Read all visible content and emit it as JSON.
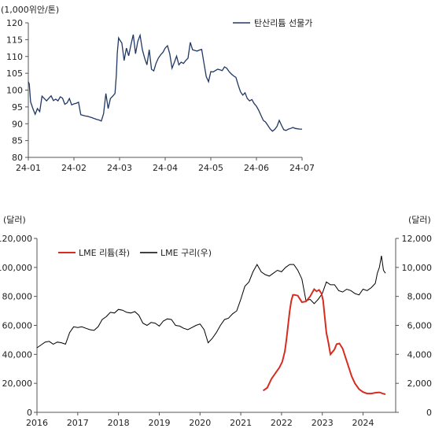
{
  "chart_data": [
    {
      "type": "line",
      "unit_label": "(1,000위안/톤)",
      "ylim": [
        80,
        120
      ],
      "y_ticks": [
        80,
        85,
        90,
        95,
        100,
        105,
        110,
        115,
        120
      ],
      "x_tick_labels": [
        "24-01",
        "24-02",
        "24-03",
        "24-04",
        "24-05",
        "24-06",
        "24-07"
      ],
      "grid": false,
      "legend_position": "top-right",
      "series": [
        {
          "name": "탄산리튬 선물가",
          "color": "#1f3864",
          "x": [
            0,
            0.02,
            0.05,
            0.1,
            0.15,
            0.2,
            0.25,
            0.3,
            0.35,
            0.4,
            0.45,
            0.5,
            0.55,
            0.6,
            0.65,
            0.7,
            0.75,
            0.8,
            0.85,
            0.9,
            0.95,
            1.0,
            1.05,
            1.1,
            1.15,
            1.2,
            1.25,
            1.3,
            1.35,
            1.4,
            1.45,
            1.5,
            1.55,
            1.6,
            1.65,
            1.7,
            1.75,
            1.8,
            1.85,
            1.9,
            1.93,
            1.95,
            1.98,
            2.0,
            2.05,
            2.1,
            2.15,
            2.2,
            2.25,
            2.3,
            2.35,
            2.4,
            2.45,
            2.5,
            2.55,
            2.6,
            2.65,
            2.7,
            2.75,
            2.8,
            2.85,
            2.9,
            2.95,
            3.0,
            3.05,
            3.1,
            3.15,
            3.2,
            3.25,
            3.3,
            3.35,
            3.4,
            3.45,
            3.5,
            3.55,
            3.6,
            3.65,
            3.7,
            3.75,
            3.8,
            3.85,
            3.9,
            3.95,
            4.0,
            4.05,
            4.1,
            4.15,
            4.2,
            4.25,
            4.3,
            4.35,
            4.4,
            4.45,
            4.5,
            4.55,
            4.6,
            4.65,
            4.7,
            4.75,
            4.8,
            4.85,
            4.9,
            4.95,
            5.0,
            5.05,
            5.1,
            5.15,
            5.2,
            5.25,
            5.3,
            5.35,
            5.4,
            5.45,
            5.5,
            5.55,
            5.6,
            5.65,
            5.7,
            5.75,
            5.8,
            5.85,
            5.9,
            5.95,
            6.0
          ],
          "y": [
            102.5,
            101.8,
            96.5,
            94.5,
            92.8,
            94.5,
            93.6,
            98.2,
            97.5,
            96.8,
            97.6,
            98.3,
            96.9,
            97.3,
            96.8,
            98.0,
            97.6,
            95.8,
            96.2,
            97.5,
            95.6,
            95.9,
            96.1,
            96.4,
            92.7,
            92.5,
            92.3,
            92.2,
            92.0,
            91.8,
            91.5,
            91.3,
            91.1,
            90.8,
            93.0,
            99.0,
            94.5,
            97.5,
            98.2,
            99.0,
            104.5,
            111.0,
            115.5,
            115.0,
            114.0,
            108.8,
            112.5,
            110.2,
            113.5,
            116.5,
            110.8,
            114.5,
            116.3,
            112.0,
            109.5,
            107.5,
            112.0,
            106.2,
            105.7,
            108.0,
            109.5,
            110.5,
            111.2,
            112.5,
            113.2,
            110.8,
            106.5,
            108.2,
            110.1,
            107.5,
            108.3,
            107.9,
            108.8,
            109.5,
            114.2,
            112.0,
            111.8,
            111.6,
            111.9,
            112.1,
            108.0,
            104.0,
            102.5,
            105.5,
            105.4,
            105.8,
            106.2,
            106.0,
            105.8,
            106.9,
            106.5,
            105.5,
            104.8,
            104.2,
            103.8,
            101.5,
            99.5,
            98.5,
            99.2,
            97.5,
            96.8,
            97.2,
            96.0,
            95.2,
            94.0,
            92.5,
            91.0,
            90.5,
            89.5,
            88.5,
            87.8,
            88.3,
            89.2,
            91.0,
            89.5,
            88.2,
            88.0,
            88.4,
            88.6,
            88.9,
            88.6,
            88.5,
            88.4,
            88.4
          ]
        }
      ]
    },
    {
      "type": "line",
      "left_unit_label": "(달러)",
      "right_unit_label": "(달러)",
      "ylim_left": [
        0,
        120000
      ],
      "ylim_right": [
        0,
        12000
      ],
      "y_ticks_left": [
        "0",
        "20,000",
        "40,000",
        "60,000",
        "80,000",
        "100,000",
        "120,000"
      ],
      "y_ticks_right": [
        "0",
        "2,000",
        "4,000",
        "6,000",
        "8,000",
        "10,000",
        "12,000"
      ],
      "x_tick_labels": [
        "2016",
        "2017",
        "2018",
        "2019",
        "2020",
        "2021",
        "2022",
        "2023",
        "2024"
      ],
      "xlim": [
        2016,
        2024.8
      ],
      "grid": false,
      "legend_position": "top-left",
      "series": [
        {
          "name": "LME 리튬(좌)",
          "axis": "left",
          "color": "#d62d20",
          "x": [
            2021.55,
            2021.65,
            2021.75,
            2021.85,
            2021.95,
            2022.02,
            2022.08,
            2022.12,
            2022.16,
            2022.2,
            2022.24,
            2022.28,
            2022.32,
            2022.4,
            2022.5,
            2022.6,
            2022.7,
            2022.8,
            2022.86,
            2022.92,
            2022.98,
            2023.02,
            2023.06,
            2023.1,
            2023.15,
            2023.2,
            2023.26,
            2023.3,
            2023.35,
            2023.42,
            2023.5,
            2023.58,
            2023.65,
            2023.72,
            2023.8,
            2023.9,
            2024.0,
            2024.1,
            2024.2,
            2024.3,
            2024.4,
            2024.5,
            2024.55
          ],
          "y": [
            15000,
            17000,
            23000,
            27000,
            31000,
            35000,
            42000,
            50000,
            60000,
            70000,
            77000,
            81000,
            81000,
            80500,
            76000,
            76500,
            80000,
            85000,
            83500,
            84500,
            82000,
            77000,
            66000,
            55000,
            48000,
            40000,
            42000,
            43500,
            47000,
            47500,
            44000,
            37000,
            31000,
            25000,
            20000,
            16000,
            14000,
            13000,
            13000,
            13500,
            13800,
            12800,
            12500
          ]
        },
        {
          "name": "LME 구리(우)",
          "axis": "right",
          "color": "#000000",
          "x": [
            2016.0,
            2016.1,
            2016.2,
            2016.3,
            2016.4,
            2016.5,
            2016.6,
            2016.7,
            2016.8,
            2016.9,
            2017.0,
            2017.1,
            2017.2,
            2017.3,
            2017.4,
            2017.5,
            2017.6,
            2017.7,
            2017.8,
            2017.9,
            2018.0,
            2018.1,
            2018.2,
            2018.3,
            2018.4,
            2018.5,
            2018.6,
            2018.7,
            2018.8,
            2018.9,
            2019.0,
            2019.1,
            2019.2,
            2019.3,
            2019.4,
            2019.5,
            2019.6,
            2019.7,
            2019.8,
            2019.9,
            2020.0,
            2020.1,
            2020.2,
            2020.3,
            2020.4,
            2020.5,
            2020.6,
            2020.7,
            2020.8,
            2020.9,
            2021.0,
            2021.1,
            2021.2,
            2021.3,
            2021.4,
            2021.5,
            2021.6,
            2021.7,
            2021.8,
            2021.9,
            2022.0,
            2022.1,
            2022.2,
            2022.3,
            2022.4,
            2022.5,
            2022.6,
            2022.7,
            2022.8,
            2022.9,
            2023.0,
            2023.1,
            2023.2,
            2023.3,
            2023.4,
            2023.5,
            2023.6,
            2023.7,
            2023.8,
            2023.9,
            2024.0,
            2024.1,
            2024.2,
            2024.3,
            2024.35,
            2024.4,
            2024.45,
            2024.5,
            2024.55
          ],
          "y": [
            4450,
            4650,
            4850,
            4900,
            4700,
            4850,
            4800,
            4700,
            5500,
            5900,
            5850,
            5900,
            5800,
            5700,
            5650,
            5900,
            6400,
            6600,
            6900,
            6850,
            7100,
            7050,
            6900,
            6850,
            6950,
            6700,
            6150,
            6000,
            6200,
            6150,
            5950,
            6300,
            6450,
            6400,
            6000,
            5950,
            5800,
            5700,
            5850,
            6000,
            6100,
            5700,
            4800,
            5100,
            5500,
            6000,
            6400,
            6500,
            6800,
            7000,
            7800,
            8700,
            9000,
            9700,
            10200,
            9700,
            9500,
            9400,
            9600,
            9800,
            9700,
            10000,
            10200,
            10200,
            9800,
            9200,
            7700,
            7800,
            7500,
            7800,
            8200,
            9000,
            8800,
            8800,
            8400,
            8300,
            8500,
            8400,
            8200,
            8100,
            8500,
            8400,
            8600,
            8900,
            9600,
            10000,
            10800,
            9800,
            9600
          ]
        }
      ]
    }
  ]
}
